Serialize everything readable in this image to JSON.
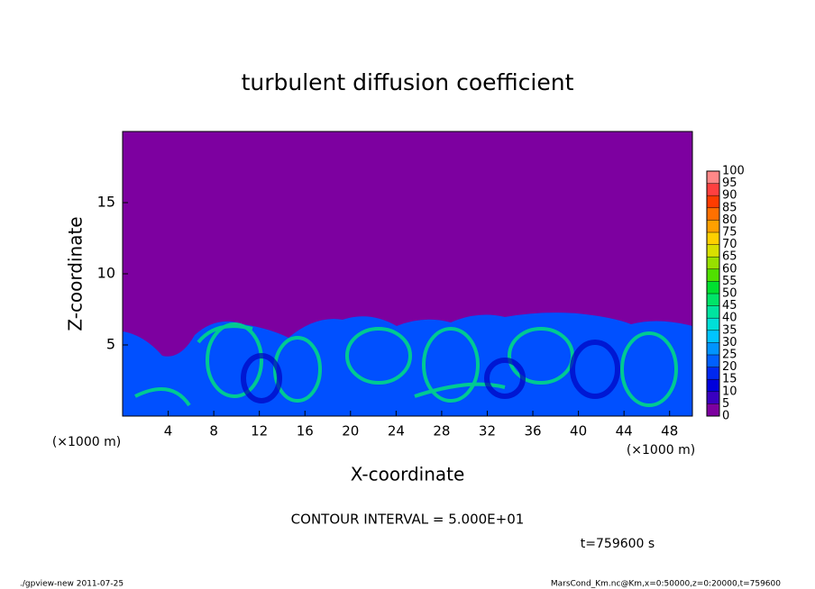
{
  "chart_data": {
    "type": "contour",
    "title": "turbulent diffusion coefficient",
    "x_label": "X-coordinate",
    "y_label": "Z-coordinate",
    "x_unit": "(×1000 m)",
    "y_unit": "(×1000 m)",
    "xlim": [
      0,
      50
    ],
    "xticks": [
      4,
      8,
      12,
      16,
      20,
      24,
      28,
      32,
      36,
      40,
      44,
      48
    ],
    "ylim": [
      0,
      20
    ],
    "yticks": [
      5,
      10,
      15
    ],
    "colorbar": {
      "levels": [
        0,
        5,
        10,
        15,
        20,
        25,
        30,
        35,
        40,
        45,
        50,
        55,
        60,
        65,
        70,
        75,
        80,
        85,
        90,
        95,
        100
      ],
      "colors": [
        "#7d00a0",
        "#3a00c0",
        "#0000dc",
        "#0028f0",
        "#0060ff",
        "#0094ff",
        "#00c4ff",
        "#00e0d8",
        "#00e4a0",
        "#00e468",
        "#00e030",
        "#50e000",
        "#98e000",
        "#d8e000",
        "#ffd000",
        "#ffa000",
        "#ff7000",
        "#ff3c00",
        "#ff4040",
        "#ff8888"
      ]
    },
    "note": "CONTOUR INTERVAL = 5.000E+01",
    "time": "t=759600 s",
    "footer_left": "./gpview-new  2011-07-25",
    "footer_right": "MarsCond_Km.nc@Km,x=0:50000,z=0:20000,t=759600"
  }
}
